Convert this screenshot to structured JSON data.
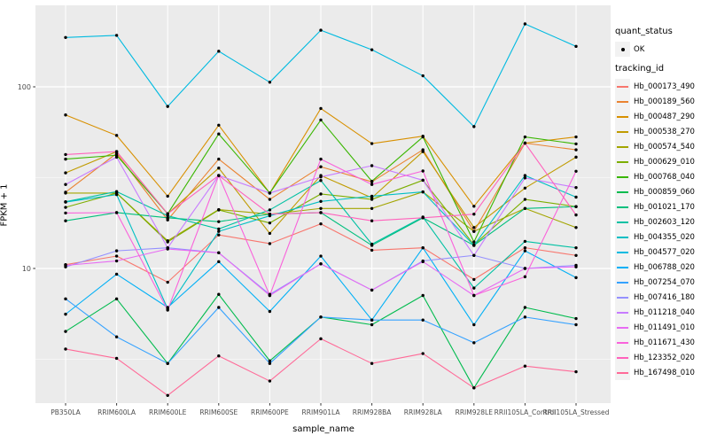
{
  "chart_data": {
    "type": "line",
    "xlabel": "sample_name",
    "ylabel": "FPKM + 1",
    "y_scale": "log10",
    "ylim": [
      1.8,
      280
    ],
    "y_ticks": [
      10,
      100
    ],
    "y_tick_labels": [
      "10",
      "100"
    ],
    "y_minor_gridlines": [
      3.162,
      31.62,
      316.2
    ],
    "grid": "on",
    "panel_bg": "#EBEBEB",
    "grid_color": "#FFFFFF",
    "point_color": "#000000",
    "tick_text_color": "#4D4D4D",
    "legend_position": "right",
    "categories": [
      "PB350LA",
      "RRIM600LA",
      "RRIM600LE",
      "RRIM600SE",
      "RRIM600PE",
      "RRIM901LA",
      "RRIM928BA",
      "RRIM928LA",
      "RRIM928LE",
      "RRII105LA_Control",
      "RRII105LA_Stressed"
    ],
    "series": [
      {
        "name": "Hb_000173_490",
        "color": "#F8766D",
        "values": [
          10.5,
          11.7,
          8.4,
          15.3,
          13.7,
          17.6,
          12.6,
          13,
          8.7,
          13,
          11.8
        ]
      },
      {
        "name": "Hb_000189_560",
        "color": "#EA8331",
        "values": [
          26.3,
          43,
          18.5,
          40,
          24,
          36.3,
          30,
          45,
          16,
          49,
          45
        ]
      },
      {
        "name": "Hb_000487_290",
        "color": "#D89000",
        "values": [
          70,
          54,
          25,
          61.5,
          26,
          76,
          48.7,
          53.5,
          22,
          49,
          53
        ]
      },
      {
        "name": "Hb_000538_270",
        "color": "#C09B00",
        "values": [
          33.6,
          44,
          20,
          35.7,
          15.6,
          32.5,
          24.5,
          44,
          16.8,
          27.7,
          41
        ]
      },
      {
        "name": "Hb_000574_540",
        "color": "#A3A500",
        "values": [
          26,
          26,
          14.2,
          21.1,
          19.9,
          21.4,
          21.4,
          26.4,
          16,
          21.4,
          16.8
        ]
      },
      {
        "name": "Hb_000629_010",
        "color": "#7CAE00",
        "values": [
          21.7,
          26,
          14,
          21,
          17.8,
          25.7,
          24,
          30.6,
          13.5,
          24,
          21.9
        ]
      },
      {
        "name": "Hb_000768_040",
        "color": "#39B600",
        "values": [
          40,
          42,
          20,
          55,
          26,
          65.7,
          30.2,
          53,
          14,
          53,
          48.5
        ]
      },
      {
        "name": "Hb_000859_060",
        "color": "#00BB4E",
        "values": [
          4.5,
          6.8,
          3,
          7.2,
          3.1,
          5.4,
          4.9,
          7.1,
          2.2,
          6.1,
          5.3
        ]
      },
      {
        "name": "Hb_001021_170",
        "color": "#00BF7D",
        "values": [
          18.3,
          20.3,
          19,
          18.1,
          19.9,
          20.3,
          13.4,
          19,
          13.4,
          21.4,
          21.9
        ]
      },
      {
        "name": "Hb_002603_120",
        "color": "#00C1A3",
        "values": [
          23.3,
          26.5,
          19.5,
          16.5,
          21,
          30.5,
          13.6,
          19.2,
          7.8,
          14.1,
          13
        ]
      },
      {
        "name": "Hb_004355_020",
        "color": "#00BFC4",
        "values": [
          23.2,
          25.5,
          6,
          16,
          19.5,
          23.4,
          25,
          26.4,
          13.4,
          32.5,
          24.7
        ]
      },
      {
        "name": "Hb_004577_020",
        "color": "#00BAE0",
        "values": [
          187,
          192,
          78,
          157,
          106,
          205,
          160,
          115,
          60.4,
          222,
          167
        ]
      },
      {
        "name": "Hb_006788_020",
        "color": "#00B0F6",
        "values": [
          5.6,
          9.3,
          6.1,
          10.9,
          5.8,
          11.7,
          5.2,
          13,
          4.9,
          12.5,
          8.9
        ]
      },
      {
        "name": "Hb_007254_070",
        "color": "#35A2FF",
        "values": [
          6.8,
          4.2,
          3,
          6.1,
          3,
          5.4,
          5.2,
          5.2,
          3.9,
          5.4,
          4.9
        ]
      },
      {
        "name": "Hb_007416_180",
        "color": "#9590FF",
        "values": [
          10.2,
          12.5,
          13,
          12.2,
          7.2,
          10.6,
          7.6,
          11,
          11.8,
          10,
          10.4
        ]
      },
      {
        "name": "Hb_011218_040",
        "color": "#C77CFF",
        "values": [
          29,
          41,
          13,
          32.5,
          26,
          31.9,
          36.8,
          30.6,
          11.8,
          31.5,
          27.9
        ]
      },
      {
        "name": "Hb_011491_010",
        "color": "#E76BF3",
        "values": [
          10.4,
          11,
          12.8,
          12.2,
          7.1,
          10.6,
          7.6,
          10.9,
          7.1,
          10,
          10.2
        ]
      },
      {
        "name": "Hb_011671_430",
        "color": "#FA62DB",
        "values": [
          20.2,
          20.3,
          5.9,
          32.5,
          7.1,
          40,
          29,
          34.4,
          7.1,
          9,
          34.3
        ]
      },
      {
        "name": "Hb_123352_020",
        "color": "#FF62BC",
        "values": [
          42.4,
          44,
          20,
          32.5,
          19.9,
          20.3,
          18.3,
          19,
          19.9,
          49,
          19.7
        ]
      },
      {
        "name": "Hb_167498_010",
        "color": "#FF6A98",
        "values": [
          3.6,
          3.2,
          2,
          3.3,
          2.4,
          4.1,
          3,
          3.4,
          2.2,
          2.9,
          2.7
        ]
      }
    ]
  },
  "legend": {
    "quant_title": "quant_status",
    "quant_items": [
      {
        "label": "OK"
      }
    ],
    "tracking_title": "tracking_id"
  }
}
